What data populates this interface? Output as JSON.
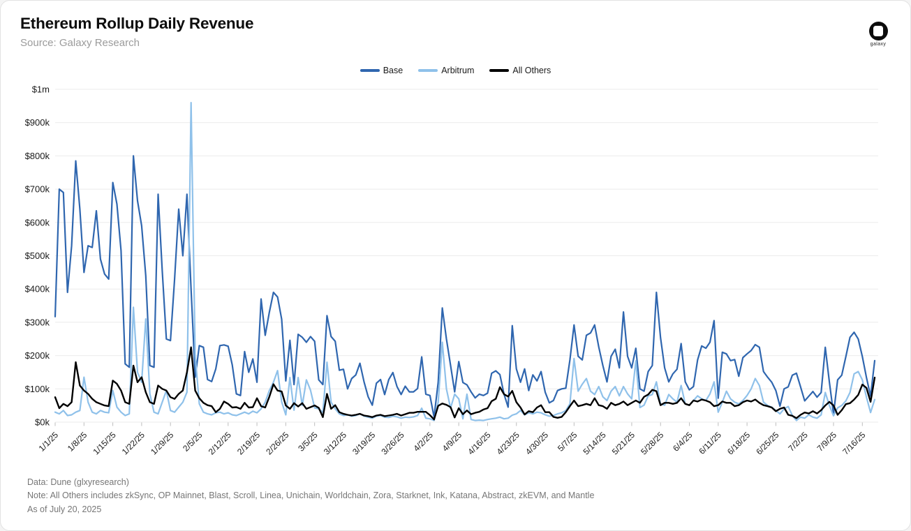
{
  "header": {
    "title": "Ethereum Rollup Daily Revenue",
    "subtitle": "Source: Galaxy Research"
  },
  "brand": {
    "logo_label": "galaxy"
  },
  "footer": {
    "line1": "Data: Dune (glxyresearch)",
    "line2": "Note: All Others includes  zkSync, OP Mainnet, Blast, Scroll, Linea, Unichain, Worldchain, Zora, Starknet, Ink, Katana, Abstract, zkEVM, and Mantle",
    "line3": "As of July 20, 2025"
  },
  "colors": {
    "background": "#ffffff",
    "grid": "#ebebeb",
    "tick": "#bdbdbd",
    "axis_text": "#1a1a1a",
    "subtitle_text": "#9b9b9b",
    "footer_text": "#767676"
  },
  "chart_data": {
    "type": "line",
    "title": "Ethereum Rollup Daily Revenue",
    "source": "Galaxy Research",
    "grid": true,
    "legend_position": "top-center",
    "values_unit": "USD thousands per day",
    "x_start_label": "1/1/25",
    "x_end_note": "daily values through 7/19/25",
    "x_tick_labels": [
      "1/1/25",
      "1/8/25",
      "1/15/25",
      "1/22/25",
      "1/29/25",
      "2/5/25",
      "2/12/25",
      "2/19/25",
      "2/26/25",
      "3/5/25",
      "3/12/25",
      "3/19/25",
      "3/26/25",
      "4/2/25",
      "4/9/25",
      "4/16/25",
      "4/23/25",
      "4/30/25",
      "5/7/25",
      "5/14/25",
      "5/21/25",
      "5/28/25",
      "6/4/25",
      "6/11/25",
      "6/18/25",
      "6/25/25",
      "7/2/25",
      "7/9/25",
      "7/16/25"
    ],
    "x_tick_day_indices": [
      0,
      7,
      14,
      21,
      28,
      35,
      42,
      49,
      56,
      63,
      70,
      77,
      84,
      91,
      98,
      105,
      112,
      119,
      126,
      133,
      140,
      147,
      154,
      161,
      168,
      175,
      182,
      189,
      196
    ],
    "y_axis": {
      "min_k": 0,
      "max_k": 1000,
      "tick_step_k": 100,
      "tick_labels_bottom_to_top": [
        "$0k",
        "$100k",
        "$200k",
        "$300k",
        "$400k",
        "$500k",
        "$600k",
        "$700k",
        "$800k",
        "$900k",
        "$1m"
      ]
    },
    "series": [
      {
        "name": "Base",
        "color": "#2F66AF",
        "values_k": [
          317,
          700,
          690,
          390,
          530,
          785,
          640,
          450,
          530,
          525,
          635,
          490,
          445,
          430,
          720,
          655,
          515,
          175,
          165,
          800,
          665,
          590,
          440,
          170,
          165,
          685,
          455,
          250,
          245,
          430,
          640,
          500,
          685,
          400,
          135,
          230,
          225,
          128,
          122,
          160,
          230,
          232,
          228,
          172,
          85,
          80,
          212,
          150,
          190,
          120,
          370,
          261,
          330,
          390,
          376,
          309,
          124,
          246,
          113,
          264,
          255,
          240,
          257,
          243,
          127,
          113,
          320,
          257,
          243,
          156,
          159,
          100,
          131,
          142,
          177,
          121,
          76,
          51,
          117,
          128,
          83,
          128,
          149,
          107,
          83,
          108,
          91,
          91,
          101,
          196,
          84,
          80,
          15,
          120,
          343,
          250,
          171,
          91,
          182,
          119,
          112,
          91,
          73,
          84,
          80,
          87,
          147,
          154,
          143,
          84,
          45,
          290,
          160,
          120,
          160,
          95,
          142,
          124,
          152,
          90,
          58,
          65,
          95,
          100,
          102,
          187,
          292,
          198,
          187,
          261,
          268,
          292,
          226,
          170,
          121,
          198,
          219,
          163,
          331,
          198,
          163,
          222,
          100,
          93,
          152,
          170,
          390,
          254,
          163,
          121,
          145,
          159,
          236,
          121,
          97,
          107,
          187,
          229,
          222,
          240,
          305,
          72,
          210,
          205,
          185,
          188,
          138,
          194,
          205,
          215,
          233,
          225,
          152,
          135,
          120,
          95,
          48,
          100,
          106,
          141,
          147,
          106,
          64,
          78,
          92,
          75,
          89,
          225,
          120,
          25,
          127,
          141,
          197,
          255,
          270,
          250,
          197,
          134,
          78,
          185
        ]
      },
      {
        "name": "Arbitrum",
        "color": "#8FC1EA",
        "values_k": [
          30,
          25,
          35,
          20,
          22,
          30,
          35,
          135,
          60,
          30,
          25,
          35,
          30,
          28,
          95,
          45,
          30,
          20,
          25,
          345,
          150,
          120,
          310,
          85,
          30,
          25,
          60,
          95,
          35,
          30,
          45,
          60,
          90,
          960,
          200,
          55,
          30,
          25,
          22,
          28,
          30,
          25,
          28,
          22,
          20,
          25,
          30,
          25,
          33,
          28,
          40,
          60,
          95,
          120,
          155,
          61,
          22,
          134,
          36,
          134,
          50,
          127,
          96,
          43,
          40,
          29,
          180,
          60,
          40,
          25,
          20,
          22,
          18,
          20,
          25,
          18,
          15,
          12,
          18,
          20,
          15,
          14,
          18,
          16,
          12,
          15,
          14,
          16,
          20,
          42,
          12,
          10,
          5,
          60,
          240,
          100,
          42,
          84,
          70,
          10,
          84,
          8,
          5,
          6,
          5,
          8,
          10,
          12,
          15,
          10,
          12,
          21,
          25,
          35,
          22,
          28,
          25,
          30,
          28,
          22,
          18,
          20,
          25,
          28,
          35,
          55,
          191,
          93,
          114,
          131,
          93,
          83,
          107,
          76,
          65,
          93,
          107,
          79,
          107,
          85,
          70,
          184,
          44,
          51,
          79,
          83,
          121,
          55,
          51,
          83,
          70,
          60,
          110,
          55,
          51,
          65,
          79,
          70,
          65,
          85,
          121,
          30,
          60,
          93,
          70,
          60,
          55,
          65,
          80,
          100,
          131,
          110,
          60,
          50,
          45,
          35,
          25,
          40,
          47,
          20,
          5,
          15,
          12,
          22,
          15,
          12,
          22,
          89,
          50,
          19,
          43,
          50,
          64,
          89,
          145,
          152,
          127,
          75,
          29,
          68
        ]
      },
      {
        "name": "All Others",
        "color": "#000000",
        "values_k": [
          75,
          42,
          55,
          48,
          60,
          180,
          110,
          95,
          85,
          70,
          60,
          55,
          50,
          48,
          125,
          115,
          95,
          60,
          55,
          170,
          120,
          135,
          90,
          60,
          55,
          110,
          100,
          95,
          75,
          70,
          85,
          95,
          150,
          225,
          95,
          72,
          58,
          51,
          48,
          30,
          40,
          62,
          55,
          44,
          45,
          40,
          58,
          44,
          45,
          72,
          48,
          44,
          76,
          114,
          95,
          92,
          50,
          40,
          57,
          47,
          57,
          40,
          45,
          50,
          43,
          15,
          85,
          40,
          51,
          30,
          25,
          22,
          20,
          22,
          25,
          20,
          18,
          15,
          20,
          22,
          18,
          20,
          22,
          25,
          20,
          24,
          28,
          28,
          31,
          31,
          31,
          21,
          8,
          49,
          56,
          52,
          45,
          14,
          42,
          24,
          35,
          24,
          28,
          31,
          38,
          42,
          63,
          70,
          105,
          84,
          77,
          94,
          60,
          44,
          23,
          33,
          30,
          44,
          51,
          30,
          30,
          16,
          13,
          16,
          30,
          48,
          65,
          48,
          51,
          55,
          51,
          72,
          51,
          48,
          40,
          58,
          51,
          55,
          62,
          51,
          58,
          65,
          58,
          76,
          83,
          97,
          93,
          51,
          58,
          58,
          55,
          58,
          72,
          55,
          51,
          65,
          62,
          68,
          65,
          60,
          48,
          51,
          62,
          58,
          58,
          48,
          51,
          60,
          65,
          62,
          68,
          58,
          51,
          48,
          44,
          33,
          40,
          44,
          22,
          19,
          12,
          22,
          29,
          26,
          33,
          26,
          36,
          50,
          61,
          50,
          22,
          36,
          54,
          57,
          68,
          82,
          113,
          103,
          61,
          134
        ]
      }
    ]
  }
}
